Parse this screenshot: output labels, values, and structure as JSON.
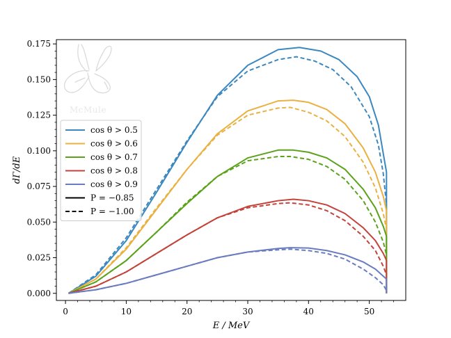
{
  "chart_data": {
    "type": "line",
    "title": "",
    "xlabel": "E / MeV",
    "ylabel": "dΓ/dE",
    "xlim": [
      -1.5,
      56
    ],
    "ylim": [
      -0.005,
      0.178
    ],
    "x_ticks": [
      "0",
      "10",
      "20",
      "30",
      "40",
      "50"
    ],
    "y_ticks": [
      "0.000",
      "0.025",
      "0.050",
      "0.075",
      "0.100",
      "0.125",
      "0.150",
      "0.175"
    ],
    "grid": false,
    "legend_position": "center-left",
    "logo_text": "McMule",
    "legend": [
      {
        "label": "cos θ > 0.5",
        "color": "#3b87bf",
        "style": "solid"
      },
      {
        "label": "cos θ > 0.6",
        "color": "#eab142",
        "style": "solid"
      },
      {
        "label": "cos θ > 0.7",
        "color": "#5ba21b",
        "style": "solid"
      },
      {
        "label": "cos θ > 0.8",
        "color": "#c3423a",
        "style": "solid"
      },
      {
        "label": "cos θ > 0.9",
        "color": "#6a7cc0",
        "style": "solid"
      },
      {
        "label": "P = −0.85",
        "color": "#000000",
        "style": "solid"
      },
      {
        "label": "P = −1.00",
        "color": "#000000",
        "style": "dashed"
      }
    ],
    "series": [
      {
        "color": "#3b87bf",
        "style": "solid",
        "x": [
          0.5,
          5,
          10,
          15,
          20,
          25,
          30,
          35,
          38.5,
          42,
          45,
          48,
          50,
          51.5,
          52.3,
          52.83,
          52.83
        ],
        "y": [
          0.0,
          0.012,
          0.037,
          0.071,
          0.106,
          0.139,
          0.16,
          0.171,
          0.1725,
          0.17,
          0.164,
          0.152,
          0.138,
          0.118,
          0.098,
          0.085,
          0.0
        ]
      },
      {
        "color": "#3b87bf",
        "style": "dashed",
        "x": [
          0.5,
          5,
          10,
          15,
          20,
          25,
          30,
          35,
          38,
          41,
          44,
          47,
          50,
          51.5,
          52.3,
          52.83
        ],
        "y": [
          0.0,
          0.013,
          0.039,
          0.073,
          0.107,
          0.138,
          0.156,
          0.164,
          0.166,
          0.163,
          0.157,
          0.145,
          0.124,
          0.104,
          0.084,
          0.062
        ]
      },
      {
        "color": "#eab142",
        "style": "solid",
        "x": [
          0.5,
          5,
          10,
          15,
          20,
          25,
          30,
          35,
          37.5,
          40,
          43,
          46,
          49,
          51,
          52.3,
          52.83,
          52.83
        ],
        "y": [
          0.0,
          0.01,
          0.031,
          0.059,
          0.087,
          0.112,
          0.128,
          0.135,
          0.1355,
          0.134,
          0.129,
          0.119,
          0.102,
          0.085,
          0.068,
          0.058,
          0.0
        ]
      },
      {
        "color": "#eab142",
        "style": "dashed",
        "x": [
          0.5,
          5,
          10,
          15,
          20,
          25,
          30,
          35,
          37,
          40,
          43,
          46,
          49,
          51,
          52.3,
          52.83
        ],
        "y": [
          0.0,
          0.01,
          0.032,
          0.06,
          0.087,
          0.111,
          0.125,
          0.13,
          0.1305,
          0.127,
          0.121,
          0.11,
          0.092,
          0.074,
          0.056,
          0.045
        ]
      },
      {
        "color": "#5ba21b",
        "style": "solid",
        "x": [
          0.5,
          5,
          10,
          15,
          20,
          25,
          30,
          35,
          37.5,
          40,
          43,
          46,
          49,
          51,
          52.3,
          52.83,
          52.83
        ],
        "y": [
          0.0,
          0.008,
          0.023,
          0.043,
          0.063,
          0.082,
          0.095,
          0.1005,
          0.1005,
          0.099,
          0.095,
          0.087,
          0.073,
          0.06,
          0.047,
          0.04,
          0.0
        ]
      },
      {
        "color": "#5ba21b",
        "style": "dashed",
        "x": [
          0.5,
          5,
          10,
          15,
          20,
          25,
          30,
          35,
          37,
          40,
          43,
          46,
          49,
          51,
          52.3,
          52.83
        ],
        "y": [
          0.0,
          0.008,
          0.023,
          0.043,
          0.064,
          0.082,
          0.093,
          0.096,
          0.096,
          0.094,
          0.089,
          0.08,
          0.065,
          0.05,
          0.036,
          0.027
        ]
      },
      {
        "color": "#c3423a",
        "style": "solid",
        "x": [
          0.5,
          5,
          10,
          15,
          20,
          25,
          30,
          35,
          37.5,
          40,
          43,
          46,
          49,
          51,
          52.3,
          52.83,
          52.83
        ],
        "y": [
          0.0,
          0.005,
          0.015,
          0.028,
          0.041,
          0.053,
          0.061,
          0.065,
          0.066,
          0.065,
          0.062,
          0.056,
          0.046,
          0.037,
          0.028,
          0.023,
          0.0
        ]
      },
      {
        "color": "#c3423a",
        "style": "dashed",
        "x": [
          0.5,
          5,
          10,
          15,
          20,
          25,
          30,
          35,
          37,
          40,
          43,
          46,
          49,
          51,
          52.3,
          52.83
        ],
        "y": [
          0.0,
          0.005,
          0.015,
          0.028,
          0.041,
          0.053,
          0.06,
          0.063,
          0.0635,
          0.062,
          0.058,
          0.051,
          0.04,
          0.03,
          0.019,
          0.013
        ]
      },
      {
        "color": "#6a7cc0",
        "style": "solid",
        "x": [
          0.5,
          5,
          10,
          15,
          20,
          25,
          30,
          35,
          37,
          40,
          43,
          46,
          49,
          51,
          52.3,
          52.83,
          52.83
        ],
        "y": [
          0.0,
          0.0025,
          0.007,
          0.013,
          0.019,
          0.025,
          0.029,
          0.0315,
          0.032,
          0.0318,
          0.03,
          0.027,
          0.022,
          0.017,
          0.012,
          0.01,
          0.0
        ]
      },
      {
        "color": "#6a7cc0",
        "style": "dashed",
        "x": [
          0.5,
          5,
          10,
          15,
          20,
          25,
          30,
          35,
          37,
          40,
          43,
          46,
          49,
          51,
          52.3,
          52.83
        ],
        "y": [
          0.0,
          0.0025,
          0.007,
          0.013,
          0.019,
          0.025,
          0.029,
          0.0305,
          0.031,
          0.03,
          0.028,
          0.024,
          0.017,
          0.011,
          0.006,
          0.002
        ]
      }
    ]
  }
}
